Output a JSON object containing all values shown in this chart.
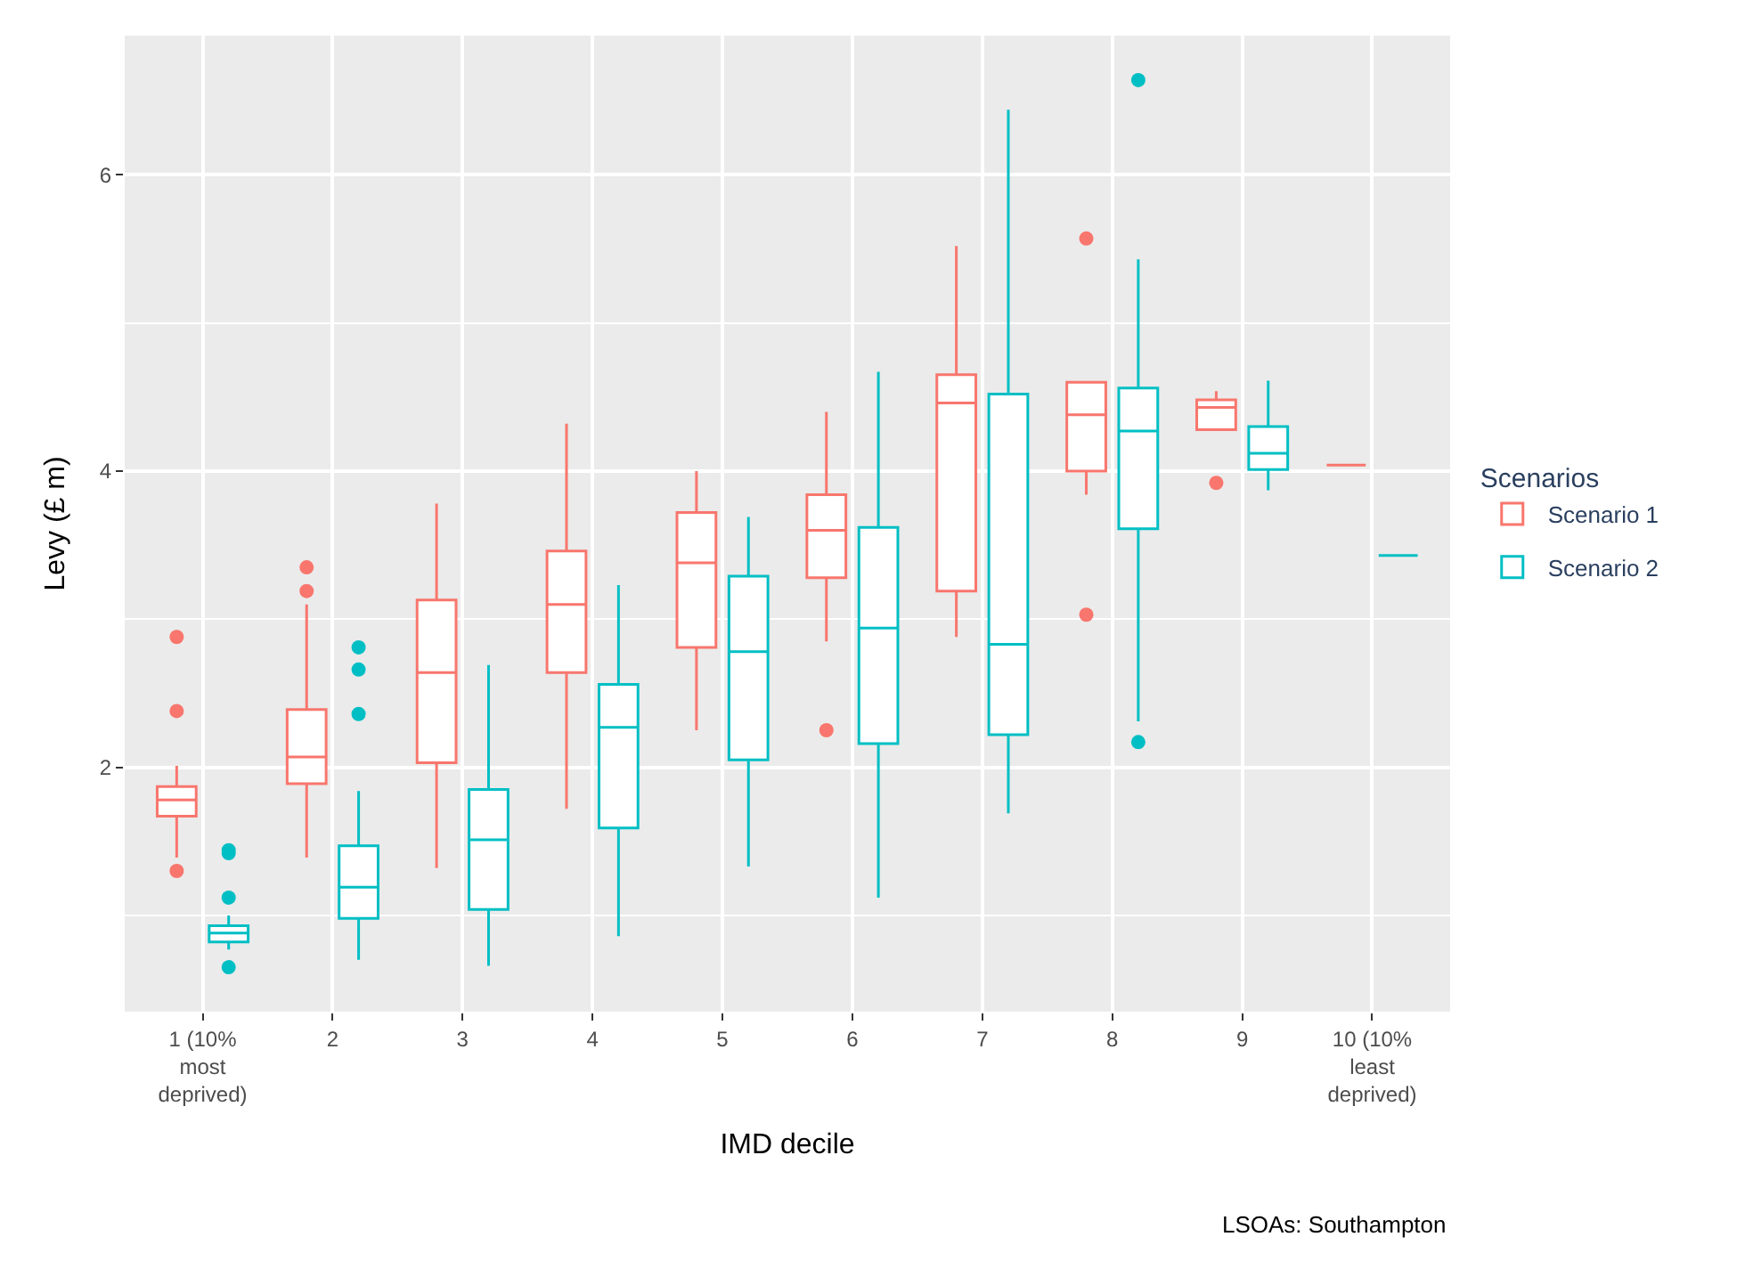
{
  "chart_data": {
    "type": "box",
    "xlabel": "IMD decile",
    "ylabel": "Levy (£ m)",
    "legend_title": "Scenarios",
    "categories": [
      "1 (10% most deprived)",
      "2",
      "3",
      "4",
      "5",
      "6",
      "7",
      "8",
      "9",
      "10 (10% least deprived)"
    ],
    "ylim": [
      0.35,
      6.94
    ],
    "yticks": [
      2,
      4,
      6
    ],
    "grid": true,
    "legend": "right",
    "series": [
      {
        "name": "Scenario 1",
        "color": "#f8766d",
        "boxes": [
          {
            "low": 1.39,
            "q1": 1.67,
            "median": 1.78,
            "q3": 1.87,
            "high": 2.01,
            "outliers": [
              2.88,
              2.38,
              1.3
            ]
          },
          {
            "low": 1.39,
            "q1": 1.89,
            "median": 2.07,
            "q3": 2.39,
            "high": 3.1,
            "outliers": [
              3.35,
              3.19
            ]
          },
          {
            "low": 1.32,
            "q1": 2.03,
            "median": 2.64,
            "q3": 3.13,
            "high": 3.78
          },
          {
            "low": 1.72,
            "q1": 2.64,
            "median": 3.1,
            "q3": 3.46,
            "high": 4.32
          },
          {
            "low": 2.25,
            "q1": 2.81,
            "median": 3.38,
            "q3": 3.72,
            "high": 4.0
          },
          {
            "low": 2.85,
            "q1": 3.28,
            "median": 3.6,
            "q3": 3.84,
            "high": 4.4,
            "outliers": [
              2.25
            ]
          },
          {
            "low": 2.88,
            "q1": 3.19,
            "median": 4.46,
            "q3": 4.65,
            "high": 5.52
          },
          {
            "low": 3.84,
            "q1": 4.0,
            "median": 4.38,
            "q3": 4.6,
            "high": 4.6,
            "outliers": [
              5.57,
              3.03
            ]
          },
          {
            "low": 4.28,
            "q1": 4.28,
            "median": 4.43,
            "q3": 4.48,
            "high": 4.54,
            "outliers": [
              3.92
            ]
          },
          {
            "low": 4.04,
            "q1": 4.04,
            "median": 4.04,
            "q3": 4.04,
            "high": 4.04
          }
        ]
      },
      {
        "name": "Scenario 2",
        "color": "#00bfc4",
        "boxes": [
          {
            "low": 0.77,
            "q1": 0.82,
            "median": 0.88,
            "q3": 0.93,
            "high": 1.0,
            "outliers": [
              1.44,
              1.42,
              1.12,
              0.65
            ]
          },
          {
            "low": 0.7,
            "q1": 0.98,
            "median": 1.19,
            "q3": 1.47,
            "high": 1.84,
            "outliers": [
              2.81,
              2.66,
              2.36
            ]
          },
          {
            "low": 0.66,
            "q1": 1.04,
            "median": 1.51,
            "q3": 1.85,
            "high": 2.69
          },
          {
            "low": 0.86,
            "q1": 1.59,
            "median": 2.27,
            "q3": 2.56,
            "high": 3.23
          },
          {
            "low": 1.33,
            "q1": 2.05,
            "median": 2.78,
            "q3": 3.29,
            "high": 3.69
          },
          {
            "low": 1.12,
            "q1": 2.16,
            "median": 2.94,
            "q3": 3.62,
            "high": 4.67
          },
          {
            "low": 1.69,
            "q1": 2.22,
            "median": 2.83,
            "q3": 4.52,
            "high": 6.44
          },
          {
            "low": 2.31,
            "q1": 3.61,
            "median": 4.27,
            "q3": 4.56,
            "high": 5.43,
            "outliers": [
              6.64,
              2.17
            ]
          },
          {
            "low": 3.87,
            "q1": 4.01,
            "median": 4.12,
            "q3": 4.3,
            "high": 4.61
          },
          {
            "low": 3.43,
            "q1": 3.43,
            "median": 3.43,
            "q3": 3.43,
            "high": 3.43
          }
        ]
      }
    ],
    "annotations": [
      "LSOAs: Southampton"
    ]
  }
}
